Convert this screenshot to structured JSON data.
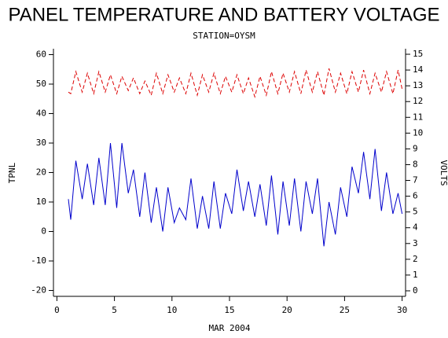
{
  "chart_data": {
    "type": "line",
    "title": "PANEL TEMPERATURE AND BATTERY VOLTAGE",
    "subtitle": "STATION=OYSM",
    "xlabel": "MAR 2004",
    "ylabel": "TPNL",
    "y2label": "VOLTS",
    "x": [
      1.0,
      1.2,
      1.65,
      2.2,
      2.65,
      3.2,
      3.65,
      4.2,
      4.65,
      5.2,
      5.65,
      6.2,
      6.65,
      7.2,
      7.65,
      8.2,
      8.65,
      9.2,
      9.65,
      10.2,
      10.65,
      11.2,
      11.65,
      12.2,
      12.65,
      13.2,
      13.65,
      14.2,
      14.65,
      15.2,
      15.65,
      16.2,
      16.65,
      17.2,
      17.65,
      18.2,
      18.65,
      19.2,
      19.65,
      20.2,
      20.65,
      21.2,
      21.65,
      22.2,
      22.65,
      23.2,
      23.65,
      24.2,
      24.65,
      25.2,
      25.65,
      26.2,
      26.65,
      27.2,
      27.65,
      28.2,
      28.65,
      29.2,
      29.65,
      30.0
    ],
    "series": [
      {
        "name": "TPNL",
        "color": "#0000cc",
        "axis": "y",
        "dash": false,
        "values": [
          11,
          4,
          24,
          11,
          23,
          9,
          25,
          9,
          30,
          8,
          30,
          13,
          21,
          5,
          20,
          3,
          15,
          0,
          15,
          3,
          8,
          4,
          18,
          1,
          12,
          1,
          17,
          1,
          13,
          6,
          21,
          7,
          17,
          5,
          16,
          2,
          19,
          -1,
          17,
          2,
          18,
          0,
          17,
          6,
          18,
          -5,
          10,
          -1,
          15,
          5,
          22,
          13,
          27,
          11,
          28,
          7,
          20,
          6,
          13,
          6
        ]
      },
      {
        "name": "VOLTS",
        "color": "#dd0000",
        "axis": "y2",
        "dash": true,
        "values": [
          12.6,
          12.5,
          13.9,
          12.6,
          13.8,
          12.5,
          13.9,
          12.6,
          13.7,
          12.5,
          13.6,
          12.7,
          13.5,
          12.5,
          13.3,
          12.4,
          13.8,
          12.5,
          13.7,
          12.6,
          13.5,
          12.5,
          13.8,
          12.4,
          13.7,
          12.6,
          13.8,
          12.5,
          13.6,
          12.6,
          13.7,
          12.5,
          13.5,
          12.3,
          13.6,
          12.4,
          13.9,
          12.5,
          13.8,
          12.6,
          13.9,
          12.5,
          14.0,
          12.6,
          13.9,
          12.4,
          14.1,
          12.6,
          13.8,
          12.5,
          13.9,
          12.6,
          14.0,
          12.5,
          13.8,
          12.6,
          13.9,
          12.5,
          14.0,
          12.8
        ]
      }
    ],
    "xlim": [
      -0.3,
      30.3
    ],
    "xticks": [
      0,
      5,
      10,
      15,
      20,
      25,
      30
    ],
    "ylim": [
      -22,
      62
    ],
    "yticks": [
      -20,
      -10,
      0,
      10,
      20,
      30,
      40,
      50,
      60
    ],
    "y2lim": [
      -0.35,
      15.35
    ],
    "y2ticks": [
      0,
      1,
      2,
      3,
      4,
      5,
      6,
      7,
      8,
      9,
      10,
      11,
      12,
      13,
      14,
      15
    ],
    "grid": false
  }
}
